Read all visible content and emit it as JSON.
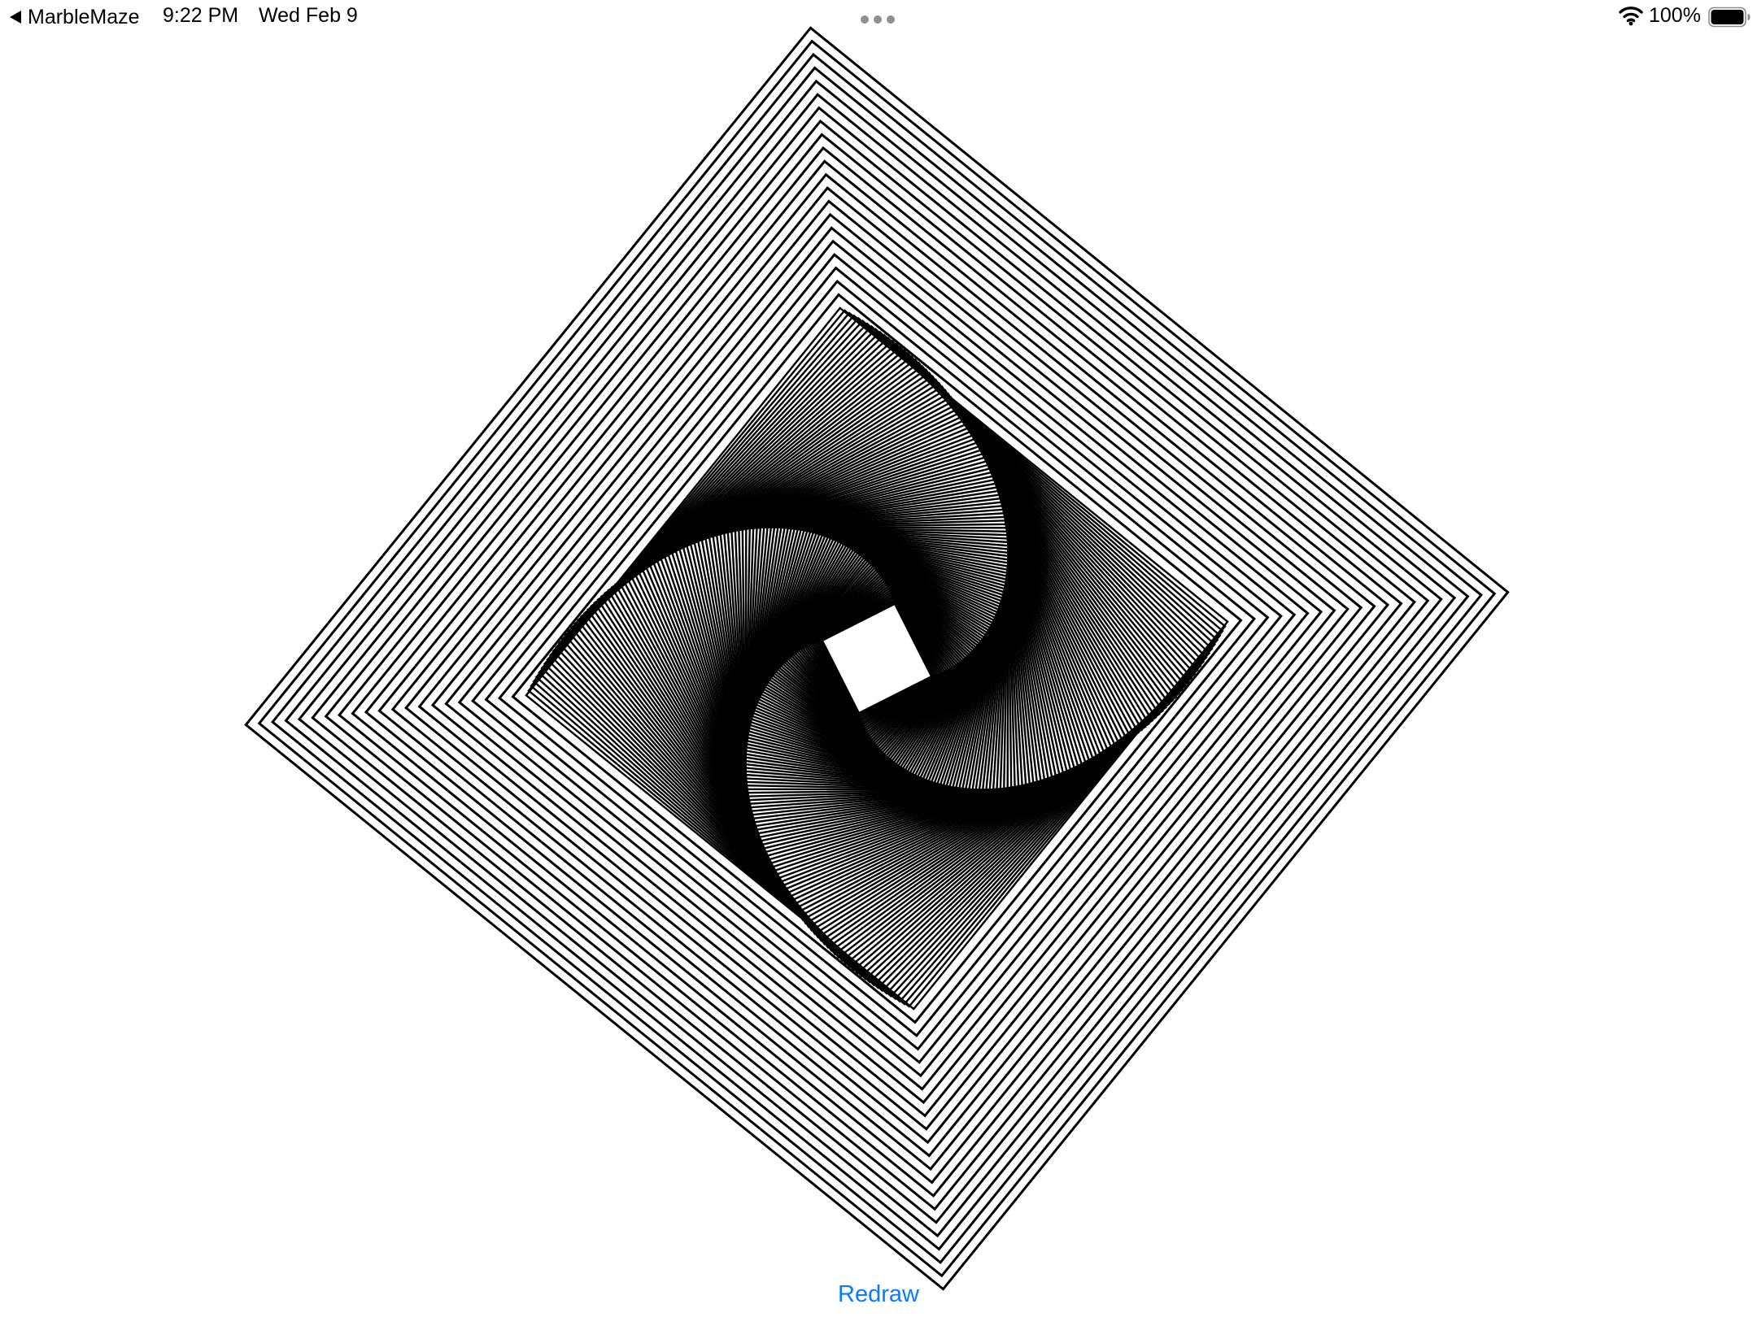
{
  "status_bar": {
    "back_app": "MarbleMaze",
    "back_icon": "back-arrow-icon",
    "time": "9:22 PM",
    "date": "Wed Feb 9",
    "multitask_icon": "ellipsis-dots-icon",
    "wifi_icon": "wifi-icon",
    "battery_percent": "100%",
    "battery_level": 1.0,
    "battery_icon": "battery-icon"
  },
  "drawing": {
    "description_type": "nested-rotating-squares",
    "stroke_color": "#000000",
    "background_color": "#ffffff"
  },
  "actions": {
    "redraw_label": "Redraw",
    "accent_color": "#0a7aff"
  }
}
